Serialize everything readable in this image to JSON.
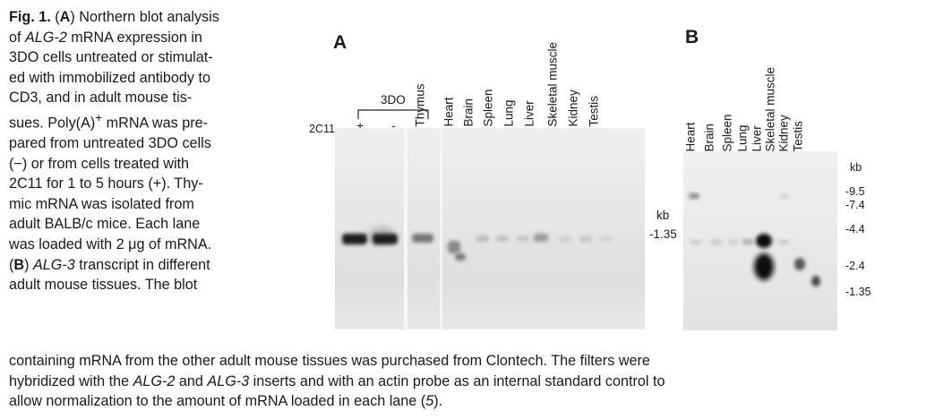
{
  "figure_label": "Fig. 1.",
  "caption": {
    "side_lines": [
      [
        "(",
        {
          "b": "A"
        },
        ") Northern blot analysis"
      ],
      [
        "of ",
        {
          "i": "ALG-2"
        },
        " mRNA expression in"
      ],
      [
        "3DO cells untreated or stimulat-"
      ],
      [
        "ed with immobilized antibody to"
      ],
      [
        "CD3, and in adult mouse tis-"
      ],
      [
        "sues. Poly(A)",
        {
          "sup": "+"
        },
        " mRNA was pre-"
      ],
      [
        "pared from untreated 3DO cells"
      ],
      [
        "(−) or from cells treated with"
      ],
      [
        "2C11 for 1 to 5 hours (+). Thy-"
      ],
      [
        "mic mRNA was isolated from"
      ],
      [
        "adult BALB/c mice. Each lane"
      ],
      [
        "was loaded with 2 μg of mRNA."
      ],
      [
        "(",
        {
          "b": "B"
        },
        ") ",
        {
          "i": "ALG-3"
        },
        " transcript in different"
      ],
      [
        "adult mouse tissues. The blot"
      ]
    ],
    "bottom_lines": [
      [
        "containing mRNA from the other adult mouse tissues was purchased from Clontech. The filters were"
      ],
      [
        "hybridized with the ",
        {
          "i": "ALG-2"
        },
        " and ",
        {
          "i": "ALG-3"
        },
        " inserts and with an actin probe as an internal standard control to"
      ],
      [
        "allow normalization to the amount of mRNA loaded in each lane (",
        {
          "i": "5"
        },
        ")."
      ]
    ]
  },
  "panel_a": {
    "letter": "A",
    "group_label": "3DO",
    "row_label": "2C11",
    "plus_minus": [
      "+",
      "-"
    ],
    "lanes": [
      "Thymus",
      "Heart",
      "Brain",
      "Spleen",
      "Lung",
      "Liver",
      "Skeletal muscle",
      "Kidney",
      "Testis"
    ],
    "kb_unit": "kb",
    "markers": [
      "-1.35"
    ]
  },
  "panel_b": {
    "letter": "B",
    "lanes": [
      "Heart",
      "Brain",
      "Spleen",
      "Lung",
      "Liver",
      "Skeletal muscle",
      "Kidney",
      "Testis"
    ],
    "kb_unit": "kb",
    "markers": [
      "-9.5",
      "-7.4",
      "-4.4",
      "-2.4",
      "-1.35"
    ]
  }
}
